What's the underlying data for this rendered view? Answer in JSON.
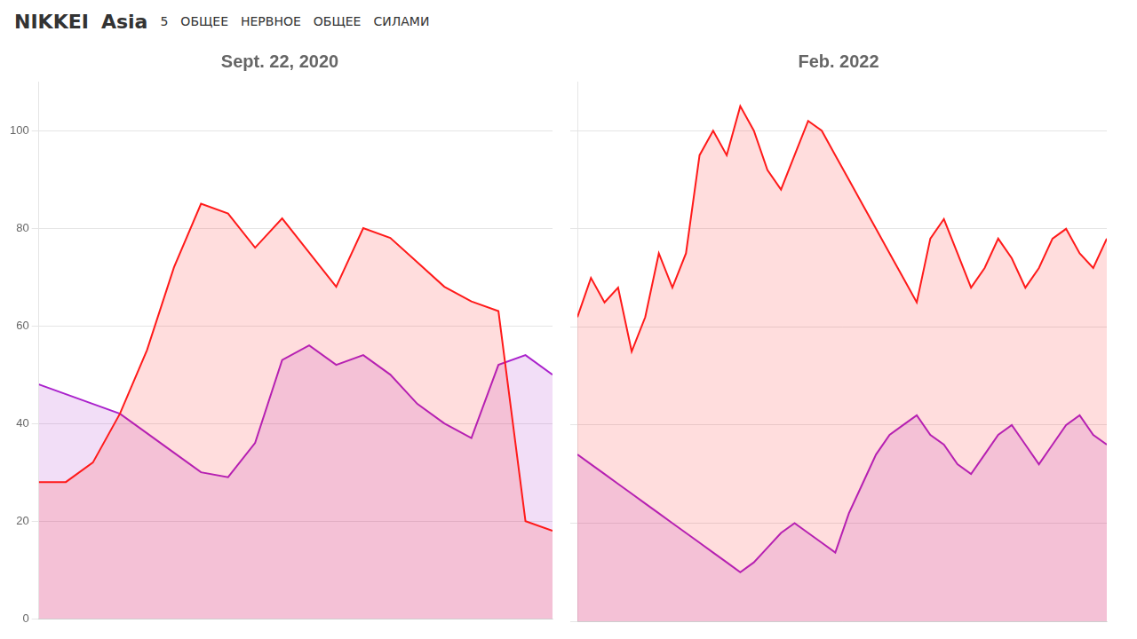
{
  "chart_data": [
    {
      "type": "area",
      "title": "Sept. 22, 2020",
      "annotations": [
        "NIKKEI",
        "Asia",
        "5",
        "ОБЩЕЕ",
        "НЕРВНОЕ",
        "ОБЩЕЕ",
        "СИЛАМИ"
      ],
      "categories": [
        null,
        null,
        null,
        null,
        null,
        null,
        null,
        null,
        null,
        null,
        null,
        null,
        null,
        null,
        null,
        null,
        null,
        null,
        null,
        null
      ],
      "series": [
        {
          "color": "#ff1a1a",
          "values": [
            28,
            28,
            32,
            42,
            55,
            72,
            85,
            83,
            76,
            82,
            75,
            68,
            80,
            78,
            73,
            68,
            65,
            63,
            20,
            18
          ]
        },
        {
          "color": "#aa22cc",
          "values": [
            48,
            46,
            44,
            42,
            38,
            34,
            30,
            29,
            36,
            53,
            56,
            52,
            54,
            50,
            44,
            40,
            37,
            52,
            54,
            50
          ]
        }
      ],
      "ylim": [
        0,
        110
      ],
      "yticks": [
        0,
        20,
        40,
        60,
        80,
        100
      ],
      "grid": true,
      "tick_labels": "y"
    },
    {
      "type": "area",
      "title": "Feb. 2022",
      "categories": [
        null,
        null,
        null,
        null,
        null,
        null,
        null,
        null,
        null,
        null,
        null,
        null,
        null,
        null,
        null,
        null,
        null,
        null,
        null,
        null,
        null,
        null,
        null,
        null,
        null,
        null,
        null,
        null,
        null,
        null,
        null,
        null,
        null,
        null,
        null,
        null,
        null,
        null,
        null,
        null
      ],
      "series": [
        {
          "color": "#ff1a1a",
          "values": [
            62,
            70,
            65,
            68,
            55,
            62,
            75,
            68,
            75,
            95,
            100,
            95,
            105,
            100,
            92,
            88,
            95,
            102,
            100,
            95,
            90,
            85,
            80,
            75,
            70,
            65,
            78,
            82,
            75,
            68,
            72,
            78,
            74,
            68,
            72,
            78,
            80,
            75,
            72,
            78
          ]
        },
        {
          "color": "#aa22cc",
          "values": [
            34,
            32,
            30,
            28,
            26,
            24,
            22,
            20,
            18,
            16,
            14,
            12,
            10,
            12,
            15,
            18,
            20,
            18,
            16,
            14,
            22,
            28,
            34,
            38,
            40,
            42,
            38,
            36,
            32,
            30,
            34,
            38,
            40,
            36,
            32,
            36,
            40,
            42,
            38,
            36
          ]
        }
      ],
      "ylim": [
        0,
        110
      ],
      "yticks": [
        0,
        20,
        40,
        60,
        80,
        100
      ],
      "grid": true,
      "tick_labels": false
    }
  ]
}
